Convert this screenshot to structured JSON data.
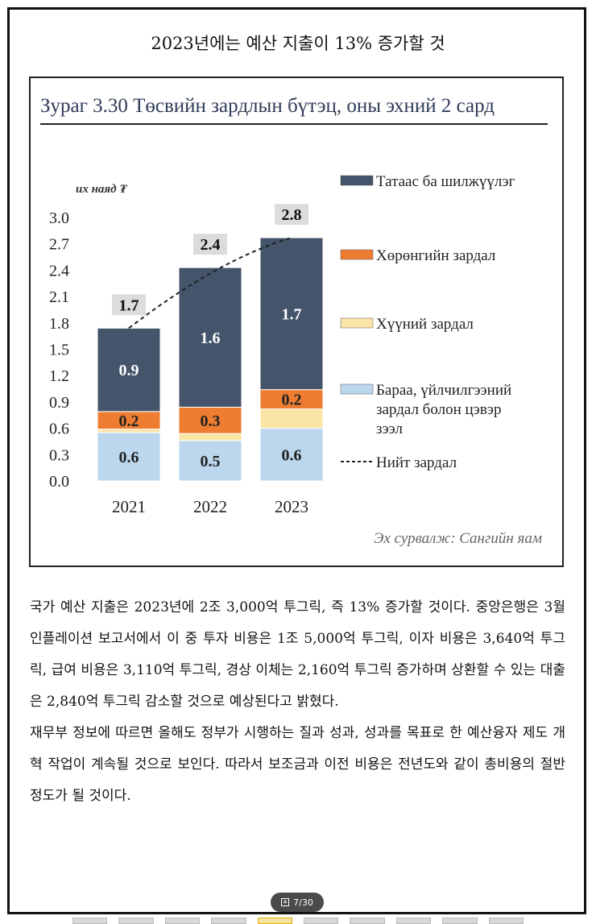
{
  "page": {
    "heading": "2023년에는 예산 지출이 13% 증가할 것",
    "paragraphs": [
      "국가 예산 지출은 2023년에 2조 3,000억 투그릭, 즉 13% 증가할 것이다. 중앙은행은 3월 인플레이션 보고서에서 이 중 투자 비용은 1조 5,000억 투그릭, 이자 비용은 3,640억 투그릭, 급여 비용은 3,110억 투그릭, 경상 이체는 2,160억 투그릭 증가하며 상환할 수 있는 대출은 2,840억 투그릭 감소할 것으로 예상된다고 밝혔다.",
      "재무부 정보에 따르면 올해도 정부가 시행하는 질과 성과, 성과를 목표로 한 예산융자 제도 개혁 작업이 계속될 것으로 보인다. 따라서 보조금과 이전 비용은 전년도와 같이 총비용의 절반 정도가 될 것이다."
    ],
    "pager": {
      "label": "7/30"
    }
  },
  "chart_data": {
    "type": "bar",
    "stacked": true,
    "title": "Зураг 3.30 Төсвийн зардлын бүтэц, оны эхний 2 сард",
    "ylabel": "их наяд ₮",
    "source": "Эх сурвалж: Сангийн яам",
    "categories": [
      "2021",
      "2022",
      "2023"
    ],
    "ylim": [
      0,
      3.0
    ],
    "yticks": [
      "0.0",
      "0.3",
      "0.6",
      "0.9",
      "1.2",
      "1.5",
      "1.8",
      "2.1",
      "2.4",
      "2.7",
      "3.0"
    ],
    "series": [
      {
        "name": "Бараа, үйлчилгээний зардал болон цэвэр зээл",
        "values": [
          0.55,
          0.46,
          0.6
        ],
        "labels": [
          "0.6",
          "0.5",
          "0.6"
        ],
        "color": "#bcd6ee"
      },
      {
        "name": "Хүүний зардал",
        "values": [
          0.04,
          0.08,
          0.22
        ],
        "labels": [
          "",
          "",
          ""
        ],
        "color": "#fbe5a6"
      },
      {
        "name": "Хөрөнгийн зардал",
        "values": [
          0.2,
          0.3,
          0.22
        ],
        "labels": [
          "0.2",
          "0.3",
          "0.2"
        ],
        "color": "#ee7d31"
      },
      {
        "name": "Татаас ба шилжүүлэг",
        "values": [
          0.95,
          1.59,
          1.73
        ],
        "labels": [
          "0.9",
          "1.6",
          "1.7"
        ],
        "color": "#44546a"
      }
    ],
    "totals": {
      "name": "Нийт зардал",
      "values": [
        1.74,
        2.43,
        2.77
      ],
      "labels": [
        "1.7",
        "2.4",
        "2.8"
      ]
    },
    "legend_position": "right",
    "legend": [
      {
        "label": "Татаас ба шилжүүлэг",
        "color": "#44546a",
        "kind": "box"
      },
      {
        "label": "Хөрөнгийн зардал",
        "color": "#ee7d31",
        "kind": "box"
      },
      {
        "label": "Хүүний зардал",
        "color": "#fbe5a6",
        "kind": "box"
      },
      {
        "label": "Бараа, үйлчилгээний зардал болон цэвэр зээл",
        "color": "#bcd6ee",
        "kind": "box"
      },
      {
        "label": "Нийт зардал",
        "color": "#222222",
        "kind": "dash"
      }
    ],
    "grid": false
  }
}
